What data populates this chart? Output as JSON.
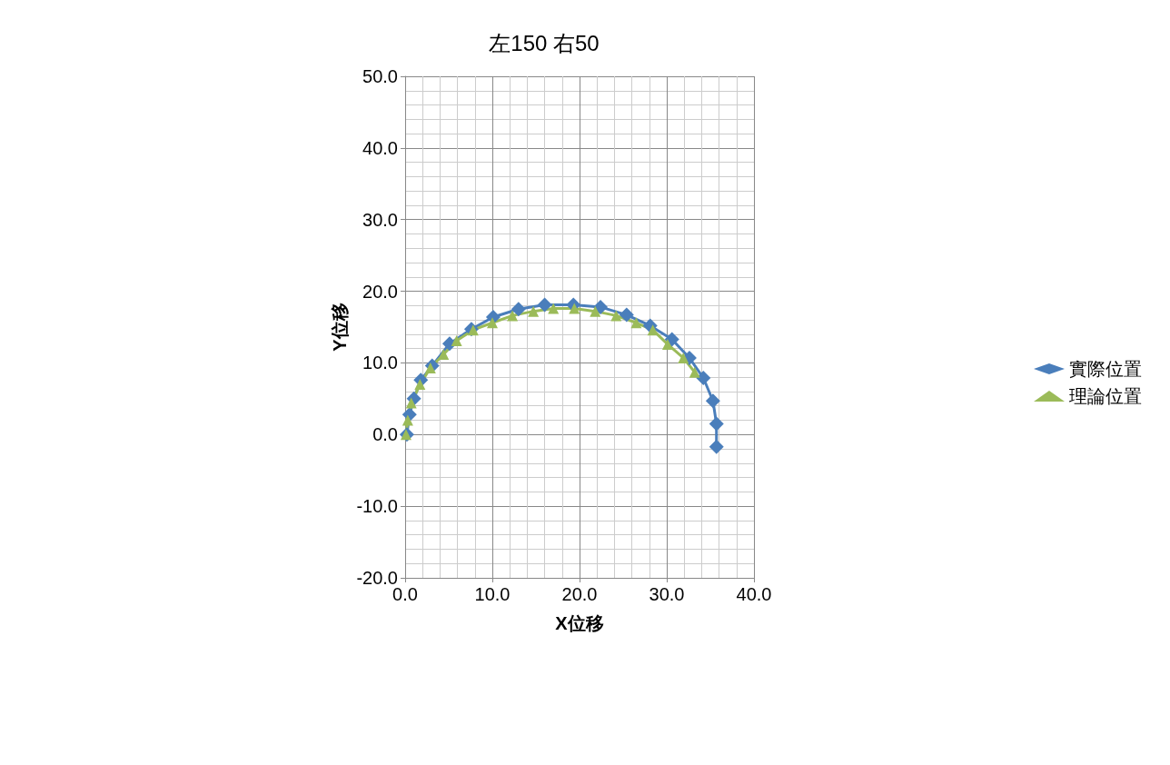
{
  "chart_data": {
    "type": "line",
    "title": "左150 右50",
    "xlabel": "X位移",
    "ylabel": "Y位移",
    "xlim": [
      0,
      40
    ],
    "xticks": [
      {
        "value": 0,
        "label": "0.0"
      },
      {
        "value": 10,
        "label": "10.0"
      },
      {
        "value": 20,
        "label": "20.0"
      },
      {
        "value": 30,
        "label": "30.0"
      },
      {
        "value": 40,
        "label": "40.0"
      }
    ],
    "ylim": [
      -20,
      50
    ],
    "yticks": [
      {
        "value": -20,
        "label": "-20.0"
      },
      {
        "value": -10,
        "label": "-10.0"
      },
      {
        "value": 0,
        "label": "0.0"
      },
      {
        "value": 10,
        "label": "10.0"
      },
      {
        "value": 20,
        "label": "20.0"
      },
      {
        "value": 30,
        "label": "30.0"
      },
      {
        "value": 40,
        "label": "40.0"
      },
      {
        "value": 50,
        "label": "50.0"
      }
    ],
    "grid": true,
    "legend": "right",
    "series": [
      {
        "name": "實際位置",
        "color": "#4a7ebb",
        "marker": "diamond",
        "x": [
          0.2,
          0.5,
          1,
          1.8,
          3.1,
          5.1,
          7.6,
          10.1,
          13,
          16,
          19.3,
          22.4,
          25.4,
          28.1,
          30.6,
          32.6,
          34.2,
          35.3,
          35.7,
          35.7
        ],
        "values": [
          0,
          2.8,
          5,
          7.6,
          9.6,
          12.7,
          14.7,
          16.4,
          17.5,
          18.1,
          18.1,
          17.8,
          16.7,
          15.2,
          13.3,
          10.7,
          7.9,
          4.7,
          1.5,
          -1.7
        ]
      },
      {
        "name": "理論位置",
        "color": "#9bbb59",
        "marker": "triangle",
        "x": [
          0.1,
          0.3,
          0.7,
          1.7,
          2.9,
          4.4,
          5.9,
          7.8,
          10,
          12.3,
          14.7,
          17,
          19.4,
          21.8,
          24.2,
          26.5,
          28.4,
          30.1,
          31.9,
          33.2
        ],
        "values": [
          0,
          2,
          4.4,
          7,
          9.3,
          11.2,
          13.1,
          14.6,
          15.6,
          16.6,
          17.2,
          17.6,
          17.6,
          17.2,
          16.6,
          15.6,
          14.6,
          12.6,
          10.7,
          8.7
        ]
      }
    ]
  }
}
